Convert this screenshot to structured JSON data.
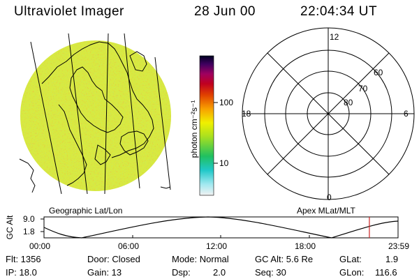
{
  "header": {
    "title": "Ultraviolet Imager",
    "date": "28 Jun 00",
    "time": "22:04:34 UT"
  },
  "colorbar": {
    "unit_label": "photon cm⁻²s⁻¹",
    "ticks": [
      "100",
      "10"
    ]
  },
  "left_panel": {
    "caption": "Geographic Lat/Lon"
  },
  "right_panel": {
    "caption": "Apex MLat/MLT",
    "mlt_labels": {
      "top": "12",
      "left": "18",
      "right": "6",
      "bottom": "0"
    },
    "lat_labels": [
      "60",
      "70",
      "80"
    ]
  },
  "altitude_plot": {
    "ylabel": "GC Alt",
    "ymax_label": "9.0",
    "ymin_label": "1.8",
    "x_ticks": [
      "00:00",
      "06:00",
      "12:00",
      "18:00",
      "23:59"
    ],
    "current_time_fraction": 0.919,
    "marker_color": "#cc2222"
  },
  "info": {
    "flt": "Flt: 1356",
    "door": "Door: Closed",
    "mode": "Mode: Normal",
    "gcalt": "GC Alt: 5.6 Re",
    "glat_label": "GLat:",
    "glat_value": "1.9",
    "ip": "IP: 18.0",
    "gain": "Gain: 13",
    "dsp_label": "Dsp:",
    "dsp_value": "2.0",
    "seq": "Seq: 30",
    "glon_label": "GLon:",
    "glon_value": "116.6"
  }
}
